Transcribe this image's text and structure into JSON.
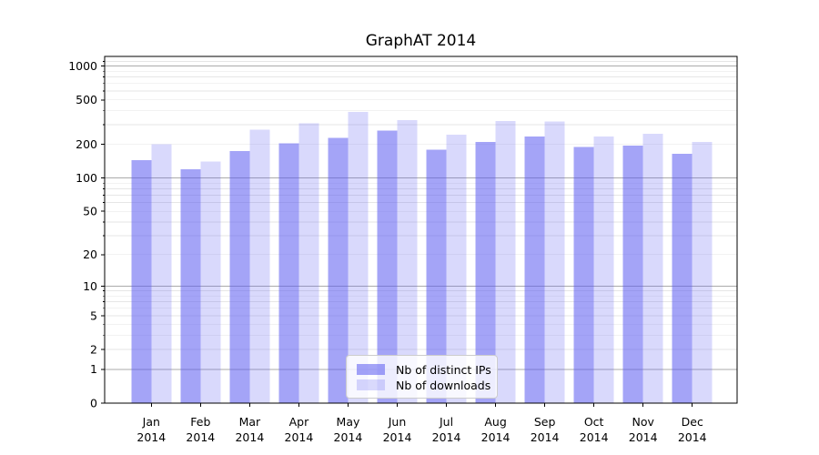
{
  "title": "GraphAT 2014",
  "chart_data": {
    "type": "bar",
    "title": "GraphAT 2014",
    "categories": [
      "Jan 2014",
      "Feb 2014",
      "Mar 2014",
      "Apr 2014",
      "May 2014",
      "Jun 2014",
      "Jul 2014",
      "Aug 2014",
      "Sep 2014",
      "Oct 2014",
      "Nov 2014",
      "Dec 2014"
    ],
    "series": [
      {
        "name": "Nb of distinct IPs",
        "color": "rgba(90,90,240,0.55)",
        "values": [
          145,
          120,
          175,
          205,
          230,
          265,
          180,
          210,
          235,
          190,
          195,
          165
        ]
      },
      {
        "name": "Nb of downloads",
        "color": "rgba(90,90,240,0.23)",
        "values": [
          200,
          140,
          270,
          310,
          390,
          330,
          245,
          325,
          320,
          235,
          250,
          210
        ]
      }
    ],
    "y_axis": {
      "scale": "log(1+y)",
      "ticks": [
        0,
        1,
        2,
        5,
        10,
        20,
        50,
        100,
        200,
        500,
        1000
      ],
      "range": [
        0,
        1200
      ]
    },
    "legend": {
      "position": "lower center"
    },
    "grid": {
      "on": true,
      "major_color": "#ababab",
      "minor_color": "#e6e6e6"
    },
    "colors": {
      "axis": "#000000",
      "background": "#ffffff"
    }
  }
}
